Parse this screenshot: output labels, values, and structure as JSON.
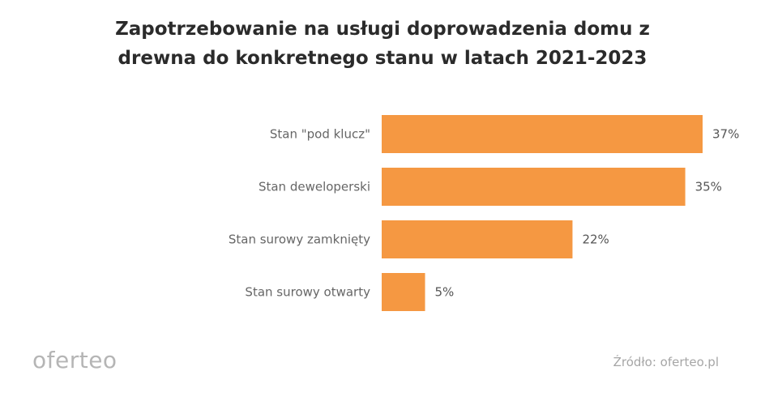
{
  "title_lines": [
    "Zapotrzebowanie na usługi doprowadzenia domu z",
    "drewna do konkretnego stanu w latach 2021-2023"
  ],
  "chart_data": {
    "type": "bar",
    "orientation": "horizontal",
    "title": "Zapotrzebowanie na usługi doprowadzenia domu z drewna do konkretnego stanu w latach 2021-2023",
    "categories": [
      "Stan \"pod klucz\"",
      "Stan deweloperski",
      "Stan surowy zamknięty",
      "Stan surowy otwarty"
    ],
    "values": [
      37,
      35,
      22,
      5
    ],
    "value_labels": [
      "37%",
      "35%",
      "22%",
      "5%"
    ],
    "unit": "%",
    "bar_color": "#F59842",
    "xlim": [
      0,
      37
    ],
    "grid": false,
    "legend": "none"
  },
  "logo_text": "oferteo",
  "source": "Źródło: oferteo.pl"
}
